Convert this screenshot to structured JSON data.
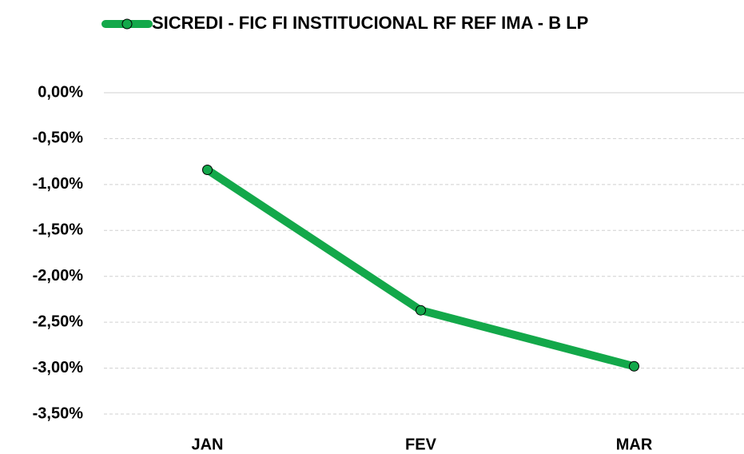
{
  "chart_data": {
    "type": "line",
    "categories": [
      "JAN",
      "FEV",
      "MAR"
    ],
    "series": [
      {
        "name": "SICREDI - FIC FI INSTITUCIONAL RF REF IMA - B LP",
        "color": "#13a84a",
        "values": [
          -0.84,
          -2.37,
          -2.98
        ]
      }
    ],
    "ylim": [
      -3.5,
      0
    ],
    "yticks": [
      {
        "value": 0,
        "label": "0,00%"
      },
      {
        "value": -0.5,
        "label": "-0,50%"
      },
      {
        "value": -1,
        "label": "-1,00%"
      },
      {
        "value": -1.5,
        "label": "-1,50%"
      },
      {
        "value": -2,
        "label": "-2,00%"
      },
      {
        "value": -2.5,
        "label": "-2,50%"
      },
      {
        "value": -3,
        "label": "-3,00%"
      },
      {
        "value": -3.5,
        "label": "-3,50%"
      }
    ],
    "grid": true,
    "legend": "top"
  }
}
